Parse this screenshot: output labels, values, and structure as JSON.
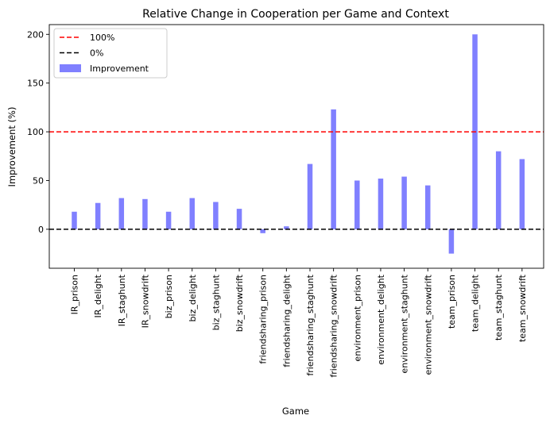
{
  "chart_data": {
    "type": "bar",
    "title": "Relative Change in Cooperation per Game and Context",
    "xlabel": "Game",
    "ylabel": "Improvement (%)",
    "ylim": [
      -40,
      210
    ],
    "yticks": [
      0,
      50,
      100,
      150,
      200
    ],
    "grid": false,
    "legend_position": "top-left",
    "categories": [
      "IR_prison",
      "IR_delight",
      "IR_staghunt",
      "IR_snowdrift",
      "biz_prison",
      "biz_delight",
      "biz_staghunt",
      "biz_snowdrift",
      "friendsharing_prison",
      "friendsharing_delight",
      "friendsharing_staghunt",
      "friendsharing_snowdrift",
      "environment_prison",
      "environment_delight",
      "environment_staghunt",
      "environment_snowdrift",
      "team_prison",
      "team_delight",
      "team_staghunt",
      "team_snowdrift"
    ],
    "series": [
      {
        "name": "Improvement",
        "color": "#8080ff",
        "values": [
          18,
          27,
          32,
          31,
          18,
          32,
          28,
          21,
          -4,
          3,
          67,
          123,
          50,
          52,
          54,
          45,
          -25,
          200,
          80,
          72
        ]
      }
    ],
    "reference_lines": [
      {
        "name": "100%",
        "y": 100,
        "color": "#ff0000",
        "style": "dashed"
      },
      {
        "name": "0%",
        "y": 0,
        "color": "#000000",
        "style": "dashed"
      }
    ]
  }
}
